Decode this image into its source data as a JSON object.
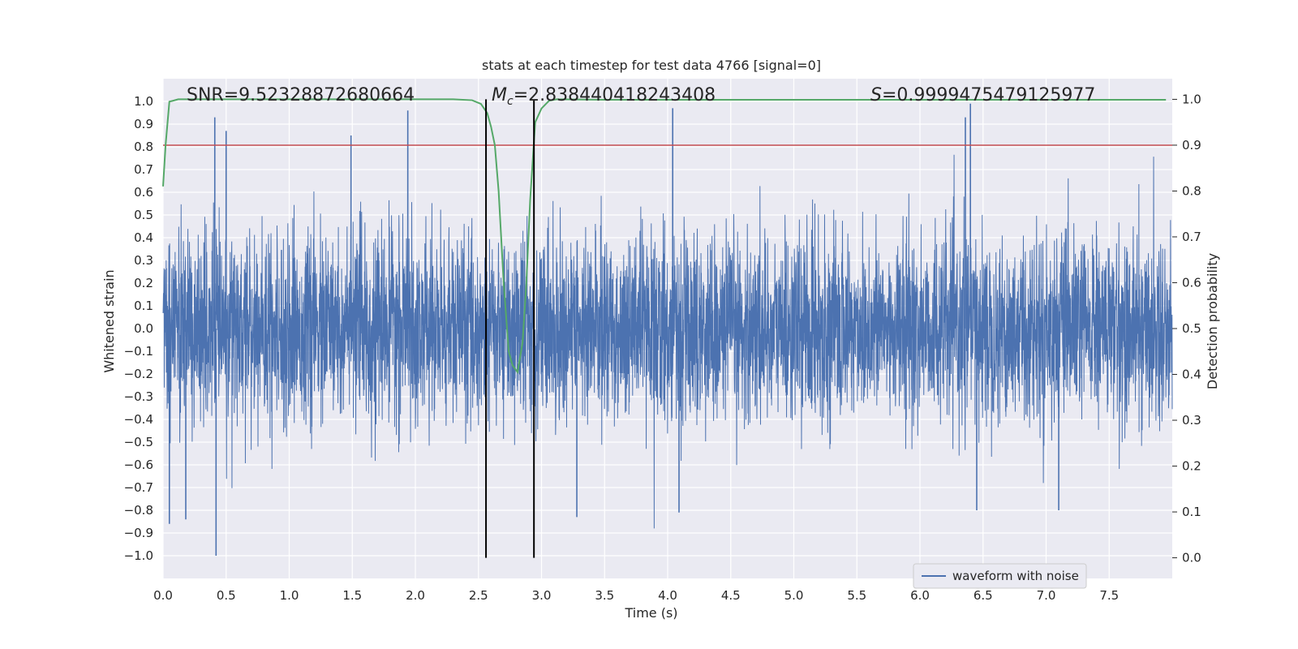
{
  "chart_data": {
    "type": "line",
    "title": "stats at each timestep for test data 4766 [signal=0]",
    "xlabel": "Time (s)",
    "ylabel": "Whitened strain",
    "y2label": "Detection probability",
    "xlim": [
      0.0,
      8.0
    ],
    "ylim": [
      -1.1,
      1.1
    ],
    "y2lim": [
      -0.045,
      1.045
    ],
    "x_ticks": [
      0.0,
      0.5,
      1.0,
      1.5,
      2.0,
      2.5,
      3.0,
      3.5,
      4.0,
      4.5,
      5.0,
      5.5,
      6.0,
      6.5,
      7.0,
      7.5
    ],
    "x_tick_labels": [
      "0.0",
      "0.5",
      "1.0",
      "1.5",
      "2.0",
      "2.5",
      "3.0",
      "3.5",
      "4.0",
      "4.5",
      "5.0",
      "5.5",
      "6.0",
      "6.5",
      "7.0",
      "7.5"
    ],
    "y_ticks": [
      1.0,
      0.9,
      0.8,
      0.7,
      0.6,
      0.5,
      0.4,
      0.3,
      0.2,
      0.1,
      0.0,
      -0.1,
      -0.2,
      -0.3,
      -0.4,
      -0.5,
      -0.6,
      -0.7,
      -0.8,
      -0.9,
      -1.0
    ],
    "y_tick_labels": [
      "1.0",
      "0.9",
      "0.8",
      "0.7",
      "0.6",
      "0.5",
      "0.4",
      "0.3",
      "0.2",
      "0.1",
      "0.0",
      "−0.1",
      "−0.2",
      "−0.3",
      "−0.4",
      "−0.5",
      "−0.6",
      "−0.7",
      "−0.8",
      "−0.9",
      "−1.0"
    ],
    "y2_ticks": [
      1.0,
      0.9,
      0.8,
      0.7,
      0.6,
      0.5,
      0.4,
      0.3,
      0.2,
      0.1,
      0.0
    ],
    "y2_tick_labels": [
      "1.0",
      "0.9",
      "0.8",
      "0.7",
      "0.6",
      "0.5",
      "0.4",
      "0.3",
      "0.2",
      "0.1",
      "0.0"
    ],
    "grid": true,
    "legend": {
      "placement": "lower-right",
      "entries": [
        "waveform with noise"
      ]
    },
    "annotations": {
      "snr": "SNR=9.52328872680664",
      "mc_symbol": "M",
      "mc_sub": "c",
      "mc_value": "=2.838440418243408",
      "s_symbol": "S",
      "s_value": "=0.9999475479125977"
    },
    "series": [
      {
        "name": "waveform with noise",
        "axis": "left",
        "color": "#4c72b0",
        "description_level": "noise, typical amplitude ±0.4, peaks near ±0.9",
        "x_range": [
          0.0,
          8.0
        ],
        "notable_peaks": [
          {
            "x": 0.41,
            "y": 0.93
          },
          {
            "x": 0.42,
            "y": -1.0
          },
          {
            "x": 0.5,
            "y": 0.87
          },
          {
            "x": 1.49,
            "y": 0.85
          },
          {
            "x": 1.94,
            "y": 0.96
          },
          {
            "x": 4.04,
            "y": 0.97
          },
          {
            "x": 6.36,
            "y": 0.93
          },
          {
            "x": 6.4,
            "y": 0.99
          },
          {
            "x": 0.05,
            "y": -0.86
          },
          {
            "x": 0.18,
            "y": -0.84
          },
          {
            "x": 6.45,
            "y": -0.8
          },
          {
            "x": 7.1,
            "y": -0.8
          },
          {
            "x": 3.28,
            "y": -0.83
          },
          {
            "x": 4.09,
            "y": -0.81
          }
        ]
      },
      {
        "name": "detection probability",
        "axis": "right",
        "color": "#55a868",
        "x": [
          0.0,
          0.02,
          0.05,
          0.08,
          0.12,
          0.2,
          0.5,
          1.0,
          1.5,
          2.0,
          2.3,
          2.45,
          2.52,
          2.57,
          2.6,
          2.63,
          2.66,
          2.7,
          2.74,
          2.77,
          2.81,
          2.85,
          2.88,
          2.91,
          2.95,
          3.0,
          3.06,
          3.12,
          3.5,
          4.5,
          5.5,
          6.5,
          7.0,
          7.5,
          7.95
        ],
        "y": [
          0.81,
          0.9,
          0.995,
          0.997,
          1.0,
          1.0,
          1.0,
          1.0,
          1.0,
          1.0,
          1.0,
          0.998,
          0.99,
          0.97,
          0.94,
          0.9,
          0.8,
          0.6,
          0.45,
          0.42,
          0.405,
          0.47,
          0.6,
          0.78,
          0.95,
          0.98,
          0.997,
          1.0,
          0.999,
          0.999,
          0.999,
          0.999,
          0.999,
          0.999,
          0.999
        ]
      },
      {
        "name": "threshold",
        "axis": "right",
        "color": "#c44e52",
        "y": 0.9
      }
    ],
    "vertical_lines": [
      2.56,
      2.94
    ],
    "vertical_line_color": "#000000",
    "colors": {
      "background": "#eaeaf2",
      "grid": "#ffffff",
      "waveform": "#4c72b0",
      "probability": "#55a868",
      "threshold": "#c44e52"
    }
  }
}
